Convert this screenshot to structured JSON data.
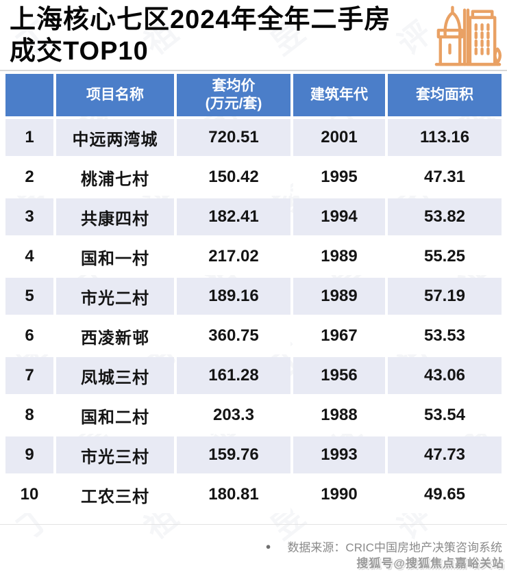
{
  "title": {
    "line1": "上海核心七区2024年全年二手房",
    "line2": "成交TOP10"
  },
  "table": {
    "headers": [
      "",
      "项目名称",
      "套均价\n(万元/套)",
      "建筑年代",
      "套均面积"
    ],
    "rows": [
      {
        "rank": "1",
        "name": "中远两湾城",
        "price": "720.51",
        "year": "2001",
        "area": "113.16"
      },
      {
        "rank": "2",
        "name": "桃浦七村",
        "price": "150.42",
        "year": "1995",
        "area": "47.31"
      },
      {
        "rank": "3",
        "name": "共康四村",
        "price": "182.41",
        "year": "1994",
        "area": "53.82"
      },
      {
        "rank": "4",
        "name": "国和一村",
        "price": "217.02",
        "year": "1989",
        "area": "55.25"
      },
      {
        "rank": "5",
        "name": "市光二村",
        "price": "189.16",
        "year": "1989",
        "area": "57.19"
      },
      {
        "rank": "6",
        "name": "西凌新邨",
        "price": "360.75",
        "year": "1967",
        "area": "53.53"
      },
      {
        "rank": "7",
        "name": "凤城三村",
        "price": "161.28",
        "year": "1956",
        "area": "43.06"
      },
      {
        "rank": "8",
        "name": "国和二村",
        "price": "203.3",
        "year": "1988",
        "area": "53.54"
      },
      {
        "rank": "9",
        "name": "市光三村",
        "price": "159.76",
        "year": "1993",
        "area": "47.73"
      },
      {
        "rank": "10",
        "name": "工农三村",
        "price": "180.81",
        "year": "1990",
        "area": "49.65"
      }
    ]
  },
  "chart_data": {
    "type": "table",
    "title": "上海核心七区2024年全年二手房成交TOP10",
    "columns": [
      "",
      "项目名称",
      "套均价(万元/套)",
      "建筑年代",
      "套均面积"
    ],
    "rows": [
      [
        1,
        "中远两湾城",
        720.51,
        2001,
        113.16
      ],
      [
        2,
        "桃浦七村",
        150.42,
        1995,
        47.31
      ],
      [
        3,
        "共康四村",
        182.41,
        1994,
        53.82
      ],
      [
        4,
        "国和一村",
        217.02,
        1989,
        55.25
      ],
      [
        5,
        "市光二村",
        189.16,
        1989,
        57.19
      ],
      [
        6,
        "西凌新邨",
        360.75,
        1967,
        53.53
      ],
      [
        7,
        "凤城三村",
        161.28,
        1956,
        43.06
      ],
      [
        8,
        "国和二村",
        203.3,
        1988,
        53.54
      ],
      [
        9,
        "市光三村",
        159.76,
        1993,
        47.73
      ],
      [
        10,
        "工农三村",
        180.81,
        1990,
        49.65
      ]
    ],
    "source": "数据来源：CRIC中国房地产决策咨询系统"
  },
  "footer": {
    "bullet": "●",
    "source": "数据来源：CRIC中国房地产决策咨询系统",
    "publisher": "搜狐号@搜狐焦点嘉峪关站"
  },
  "watermark": {
    "diagonal_text": "丁祖昱评楼市"
  },
  "icons": {
    "header_icon": "city-buildings-icon"
  },
  "colors": {
    "header_blue": "#4b7ec9",
    "row_alt_lavender": "#e8eaf4",
    "icon_orange": "#e9a164",
    "title_black": "#060606",
    "footer_gray": "#8a8a8a"
  }
}
